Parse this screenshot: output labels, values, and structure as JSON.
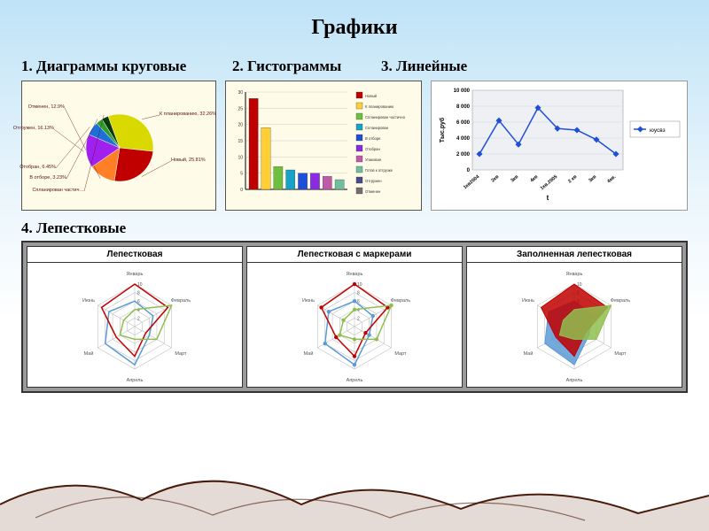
{
  "title": "Графики",
  "sections": {
    "s1": "1. Диаграммы круговые",
    "s2": "2. Гистограммы",
    "s3": "3. Линейные",
    "s4": "4. Лепестковые"
  },
  "pie": {
    "type": "pie",
    "background_color": "#fffbe9",
    "slices": [
      {
        "label": "К планированию, 32.26%",
        "value": 32.26,
        "color": "#d9d900"
      },
      {
        "label": "Новый, 25.81%",
        "value": 25.81,
        "color": "#c00000"
      },
      {
        "label": "Отменен, 12.9%",
        "value": 12.9,
        "color": "#ff7f27"
      },
      {
        "label": "Отгружен, 16.13%",
        "value": 16.13,
        "color": "#a020f0"
      },
      {
        "label": "Отобран, 6.45%",
        "value": 6.45,
        "color": "#1e6fd9"
      },
      {
        "label": "В отборе, 3.23%",
        "value": 3.23,
        "color": "#2e9e2e"
      },
      {
        "label": "Спланирован частич…",
        "value": 3.22,
        "color": "#0a3a0a"
      }
    ],
    "label_color": "#5c1010",
    "label_fontsize": 5.5
  },
  "bar": {
    "type": "bar",
    "background_color": "#fffbe9",
    "ylim": [
      0,
      30
    ],
    "ytick_step": 5,
    "axis_color": "#000000",
    "grid_color": "#cccccc",
    "bars": [
      {
        "value": 28,
        "color": "#c00000"
      },
      {
        "value": 19,
        "color": "#ffcf33"
      },
      {
        "value": 7,
        "color": "#6fbf3f"
      },
      {
        "value": 6,
        "color": "#17a2c7"
      },
      {
        "value": 5,
        "color": "#1e4fd9"
      },
      {
        "value": 5,
        "color": "#8a2be2"
      },
      {
        "value": 4,
        "color": "#c05aa8"
      },
      {
        "value": 3,
        "color": "#6fbf9f"
      }
    ],
    "legend": [
      {
        "label": "Новый",
        "color": "#c00000"
      },
      {
        "label": "К планированию",
        "color": "#ffcf33"
      },
      {
        "label": "Спланирован частично",
        "color": "#6fbf3f"
      },
      {
        "label": "Спланирован",
        "color": "#17a2c7"
      },
      {
        "label": "В отборе",
        "color": "#1e4fd9"
      },
      {
        "label": "Отобран",
        "color": "#8a2be2"
      },
      {
        "label": "Упакован",
        "color": "#c05aa8"
      },
      {
        "label": "Готов к отгрузке",
        "color": "#6fbf9f"
      },
      {
        "label": "Отгружен",
        "color": "#4a4a8a"
      },
      {
        "label": "Отменен",
        "color": "#707070"
      }
    ],
    "legend_fontsize": 4.2
  },
  "line": {
    "type": "line",
    "background_color": "#ffffff",
    "grid_bg": "#eef0f3",
    "grid_color": "#cfd6dd",
    "axis_color": "#000000",
    "ylabel": "Тыс.руб",
    "xlabel": "t",
    "ylim": [
      0,
      10000
    ],
    "ytick_step": 2000,
    "x_categories": [
      "1кв2004",
      "2кв",
      "3кв",
      "4кв",
      "1кв.2005",
      "2 кв",
      "3кв",
      "4кв."
    ],
    "series": {
      "name": "юусвз",
      "marker": "diamond",
      "color": "#1e4fd9",
      "values": [
        2000,
        6200,
        3200,
        7800,
        5200,
        5000,
        3800,
        2000
      ]
    },
    "label_fontsize": 6.5
  },
  "radar": {
    "panel_bg": "#9a9a9a",
    "cell_bg": "#ffffff",
    "axes": [
      "Январь",
      "Февраль",
      "Март",
      "Апрель",
      "Май",
      "Июнь"
    ],
    "rings": [
      2,
      4,
      6,
      8,
      10
    ],
    "ring_max": 10,
    "ring_color": "#bfbfbf",
    "axis_label_color": "#555555",
    "titles": [
      "Лепестковая",
      "Лепестковая с маркерами",
      "Заполненная лепестковая"
    ],
    "series": [
      {
        "color": "#5b9bd5",
        "values": [
          6,
          5,
          4,
          9,
          8,
          7
        ]
      },
      {
        "color": "#c00000",
        "values": [
          10,
          9,
          3,
          7,
          5,
          9
        ]
      },
      {
        "color": "#8fbf4f",
        "values": [
          4,
          10,
          6,
          3,
          4,
          3
        ]
      }
    ]
  },
  "mountains": {
    "stroke": "#4a1a0a",
    "fill": "#6b3a24"
  }
}
